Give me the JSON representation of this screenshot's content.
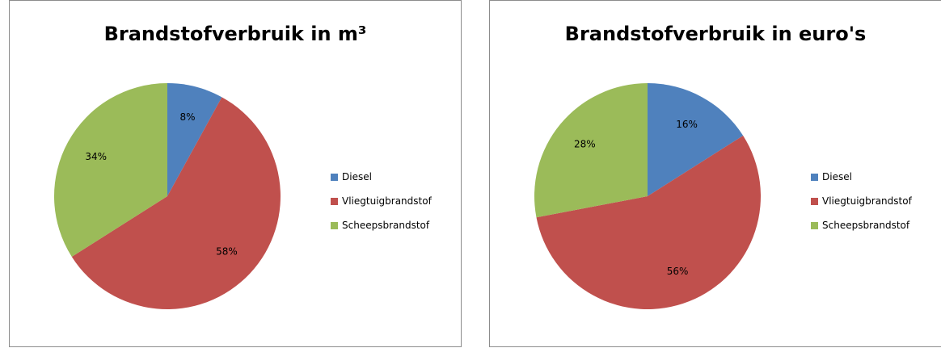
{
  "colors": {
    "diesel": "#4F81BD",
    "vliegtuig": "#C0504D",
    "scheeps": "#9BBB59"
  },
  "chart_data": [
    {
      "type": "pie",
      "title": "Brandstofverbruik in m³",
      "categories": [
        "Diesel",
        "Vliegtuigbrandstof",
        "Scheepsbrandstof"
      ],
      "values": [
        8,
        58,
        34
      ],
      "data_labels": [
        "8%",
        "58%",
        "34%"
      ],
      "legend_position": "right"
    },
    {
      "type": "pie",
      "title": "Brandstofverbruik in euro's",
      "categories": [
        "Diesel",
        "Vliegtuigbrandstof",
        "Scheepsbrandstof"
      ],
      "values": [
        16,
        56,
        28
      ],
      "data_labels": [
        "16%",
        "56%",
        "28%"
      ],
      "legend_position": "right"
    }
  ]
}
